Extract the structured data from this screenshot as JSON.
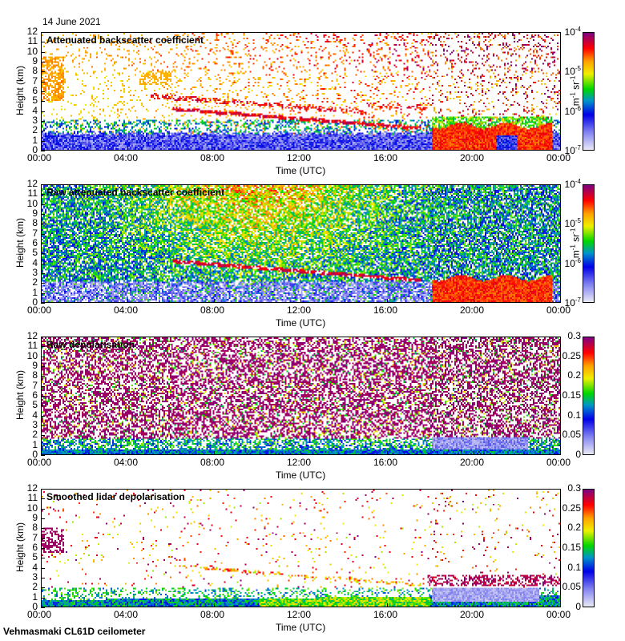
{
  "date_label": "14 June 2021",
  "footer": "Vehmasmaki CL61D ceilometer",
  "chart_data": [
    {
      "type": "heatmap",
      "title": "Attenuated backscatter coefficient",
      "xlabel": "Time (UTC)",
      "ylabel": "Height (km)",
      "xticks": [
        "00:00",
        "04:00",
        "08:00",
        "12:00",
        "16:00",
        "20:00",
        "00:00"
      ],
      "yticks": [
        "0",
        "1",
        "2",
        "3",
        "4",
        "5",
        "6",
        "7",
        "8",
        "9",
        "10",
        "11",
        "12"
      ],
      "ylim": [
        0,
        12
      ],
      "colorbar": {
        "scale": "log",
        "label_base": "m",
        "label_exp1": "-1",
        "label_mid": " sr",
        "label_exp2": "-1",
        "ticks": [
          {
            "base": "10",
            "exp": "-4"
          },
          {
            "base": "10",
            "exp": "-5"
          },
          {
            "base": "10",
            "exp": "-6"
          },
          {
            "base": "10",
            "exp": "-7"
          }
        ],
        "range": [
          1e-07,
          0.0001
        ]
      }
    },
    {
      "type": "heatmap",
      "title": "Raw attenuated backscatter coefficient",
      "xlabel": "Time (UTC)",
      "ylabel": "Height (km)",
      "xticks": [
        "00:00",
        "04:00",
        "08:00",
        "12:00",
        "16:00",
        "20:00",
        "00:00"
      ],
      "yticks": [
        "0",
        "1",
        "2",
        "3",
        "4",
        "5",
        "6",
        "7",
        "8",
        "9",
        "10",
        "11",
        "12"
      ],
      "ylim": [
        0,
        12
      ],
      "colorbar": {
        "scale": "log",
        "label_base": "m",
        "label_exp1": "-1",
        "label_mid": " sr",
        "label_exp2": "-1",
        "ticks": [
          {
            "base": "10",
            "exp": "-4"
          },
          {
            "base": "10",
            "exp": "-5"
          },
          {
            "base": "10",
            "exp": "-6"
          },
          {
            "base": "10",
            "exp": "-7"
          }
        ],
        "range": [
          1e-07,
          0.0001
        ]
      }
    },
    {
      "type": "heatmap",
      "title": "Raw depolarisation",
      "xlabel": "Time (UTC)",
      "ylabel": "Height (km)",
      "xticks": [
        "00:00",
        "04:00",
        "08:00",
        "12:00",
        "16:00",
        "20:00",
        "00:00"
      ],
      "yticks": [
        "0",
        "1",
        "2",
        "3",
        "4",
        "5",
        "6",
        "7",
        "8",
        "9",
        "10",
        "11",
        "12"
      ],
      "ylim": [
        0,
        12
      ],
      "colorbar": {
        "scale": "linear",
        "ticks": [
          "0.3",
          "0.25",
          "0.2",
          "0.15",
          "0.1",
          "0.05",
          "0"
        ],
        "range": [
          0,
          0.3
        ]
      }
    },
    {
      "type": "heatmap",
      "title": "Smoothed lidar depolarisation",
      "xlabel": "Time (UTC)",
      "ylabel": "Height (km)",
      "xticks": [
        "00:00",
        "04:00",
        "08:00",
        "12:00",
        "16:00",
        "20:00",
        "00:00"
      ],
      "yticks": [
        "0",
        "1",
        "2",
        "3",
        "4",
        "5",
        "6",
        "7",
        "8",
        "9",
        "10",
        "11",
        "12"
      ],
      "ylim": [
        0,
        12
      ],
      "colorbar": {
        "scale": "linear",
        "ticks": [
          "0.3",
          "0.25",
          "0.2",
          "0.15",
          "0.1",
          "0.05",
          "0"
        ],
        "range": [
          0,
          0.3
        ]
      }
    }
  ]
}
